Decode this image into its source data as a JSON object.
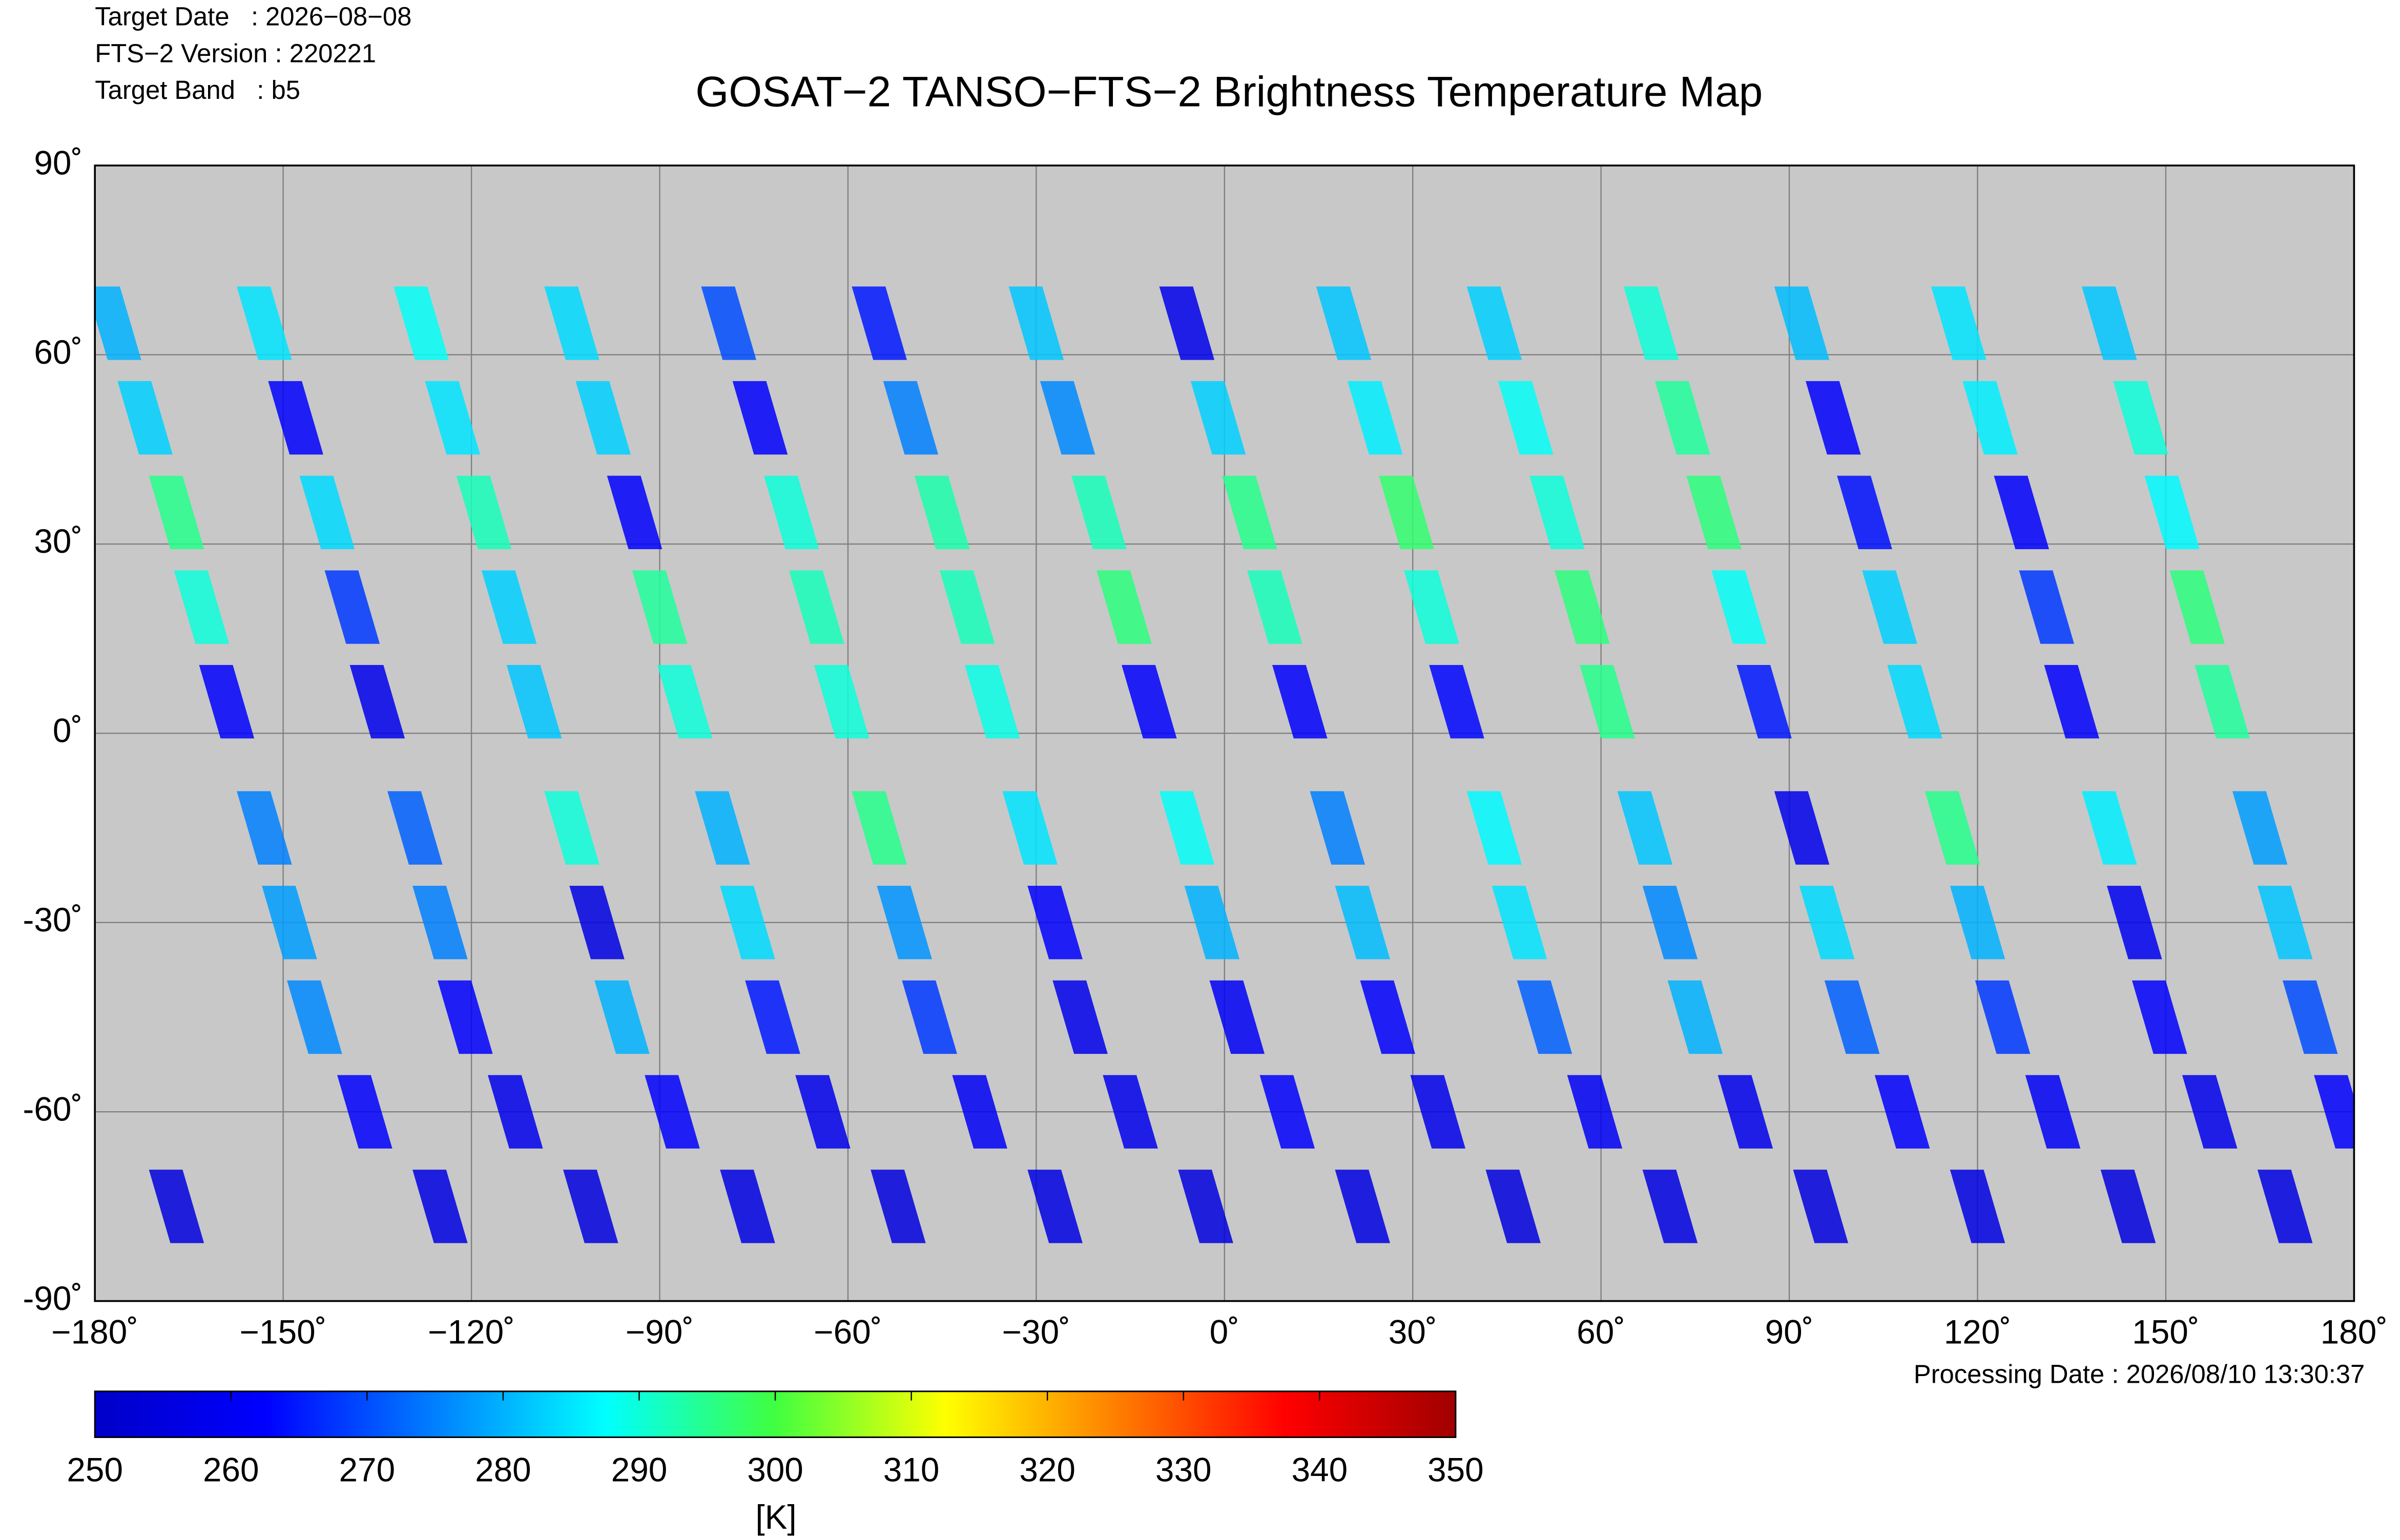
{
  "chart_data": {
    "type": "scatter",
    "title": "GOSAT−2 TANSO−FTS−2 Brightness Temperature Map",
    "annotations": [
      "Target Date   : 2026−08−08",
      "FTS−2 Version : 220221",
      "Target Band   : b5",
      "Processing Date : 2026/08/10 13:30:37"
    ],
    "x": [
      -177,
      -172,
      -167,
      -163,
      -159,
      -153,
      -149,
      -145,
      -137,
      -125,
      -153,
      -148,
      -143,
      -139,
      -135,
      -129,
      -125,
      -121,
      -113,
      -101,
      -128,
      -123,
      -118,
      -114,
      -110,
      -104,
      -100,
      -96,
      -88,
      -76,
      -104,
      -99,
      -94,
      -90,
      -86,
      -80,
      -76,
      -72,
      -64,
      -52,
      -79,
      -74,
      -69,
      -65,
      -61,
      -55,
      -51,
      -47,
      -39,
      -27,
      -55,
      -50,
      -45,
      -41,
      -37,
      -31,
      -27,
      -23,
      -15,
      -3,
      -30,
      -25,
      -20,
      -16,
      -12,
      -6,
      -2,
      2,
      10,
      22,
      -6,
      -1,
      4,
      8,
      12,
      18,
      22,
      26,
      34,
      46,
      19,
      24,
      29,
      33,
      37,
      43,
      47,
      51,
      59,
      71,
      43,
      48,
      53,
      57,
      61,
      67,
      71,
      75,
      83,
      95,
      68,
      73,
      78,
      82,
      86,
      92,
      96,
      100,
      108,
      120,
      92,
      97,
      102,
      106,
      110,
      116,
      120,
      124,
      132,
      144,
      117,
      122,
      127,
      131,
      135,
      141,
      145,
      149,
      157,
      169,
      141,
      146,
      151,
      155,
      159,
      165,
      169,
      173,
      178,
      -167
    ],
    "y": [
      65,
      50,
      35,
      20,
      5,
      -15,
      -30,
      -45,
      -60,
      -75,
      65,
      50,
      35,
      20,
      5,
      -15,
      -30,
      -45,
      -60,
      -75,
      65,
      50,
      35,
      20,
      5,
      -15,
      -30,
      -45,
      -60,
      -75,
      65,
      50,
      35,
      20,
      5,
      -15,
      -30,
      -45,
      -60,
      -75,
      65,
      50,
      35,
      20,
      5,
      -15,
      -30,
      -45,
      -60,
      -75,
      65,
      50,
      35,
      20,
      5,
      -15,
      -30,
      -45,
      -60,
      -75,
      65,
      50,
      35,
      20,
      5,
      -15,
      -30,
      -45,
      -60,
      -75,
      65,
      50,
      35,
      20,
      5,
      -15,
      -30,
      -45,
      -60,
      -75,
      65,
      50,
      35,
      20,
      5,
      -15,
      -30,
      -45,
      -60,
      -75,
      65,
      50,
      35,
      20,
      5,
      -15,
      -30,
      -45,
      -60,
      -75,
      65,
      50,
      35,
      20,
      5,
      -15,
      -30,
      -45,
      -60,
      -75,
      65,
      50,
      35,
      20,
      5,
      -15,
      -30,
      -45,
      -60,
      -75,
      65,
      50,
      35,
      20,
      5,
      -15,
      -30,
      -45,
      -60,
      -75,
      65,
      50,
      35,
      20,
      5,
      -15,
      -30,
      -45,
      -60,
      -75
    ],
    "values": [
      280,
      283,
      295,
      290,
      262,
      275,
      278,
      276,
      262,
      256,
      285,
      262,
      284,
      268,
      258,
      272,
      275,
      262,
      258,
      255,
      288,
      285,
      292,
      283,
      282,
      290,
      256,
      280,
      262,
      256,
      284,
      283,
      262,
      294,
      290,
      280,
      284,
      265,
      258,
      255,
      270,
      262,
      290,
      292,
      290,
      295,
      277,
      268,
      260,
      256,
      265,
      275,
      293,
      292,
      289,
      285,
      262,
      258,
      258,
      255,
      282,
      276,
      292,
      296,
      262,
      288,
      280,
      260,
      262,
      256,
      258,
      283,
      295,
      292,
      262,
      275,
      281,
      262,
      258,
      255,
      282,
      286,
      297,
      290,
      263,
      287,
      285,
      272,
      260,
      256,
      283,
      288,
      290,
      296,
      295,
      282,
      276,
      280,
      258,
      255,
      290,
      294,
      296,
      288,
      265,
      258,
      284,
      272,
      262,
      256,
      281,
      262,
      264,
      283,
      284,
      295,
      280,
      268,
      260,
      255,
      285,
      286,
      262,
      268,
      262,
      286,
      259,
      262,
      258,
      256,
      282,
      290,
      287,
      296,
      294,
      278,
      282,
      270,
      262,
      255
    ],
    "xlim": [
      -180,
      180
    ],
    "ylim": [
      -90,
      90
    ],
    "xticks": [
      {
        "value": -180,
        "label": "−180˚"
      },
      {
        "value": -150,
        "label": "−150˚"
      },
      {
        "value": -120,
        "label": "−120˚"
      },
      {
        "value": -90,
        "label": "−90˚"
      },
      {
        "value": -60,
        "label": "−60˚"
      },
      {
        "value": -30,
        "label": "−30˚"
      },
      {
        "value": 0,
        "label": "0˚"
      },
      {
        "value": 30,
        "label": "30˚"
      },
      {
        "value": 60,
        "label": "60˚"
      },
      {
        "value": 90,
        "label": "90˚"
      },
      {
        "value": 120,
        "label": "120˚"
      },
      {
        "value": 150,
        "label": "150˚"
      },
      {
        "value": 180,
        "label": "180˚"
      }
    ],
    "yticks": [
      {
        "value": 90,
        "label": "90˚"
      },
      {
        "value": 60,
        "label": "60˚"
      },
      {
        "value": 30,
        "label": "30˚"
      },
      {
        "value": 0,
        "label": "0˚"
      },
      {
        "value": -30,
        "label": "-30˚"
      },
      {
        "value": -60,
        "label": "-60˚"
      },
      {
        "value": -90,
        "label": "-90˚"
      }
    ],
    "grid": true,
    "background": "#c8c8c8",
    "colorbar": {
      "label": "[K]",
      "clim": [
        250,
        350
      ],
      "ticks": [
        250,
        260,
        270,
        280,
        290,
        300,
        310,
        320,
        330,
        340,
        350
      ],
      "colormap": "jet"
    }
  }
}
